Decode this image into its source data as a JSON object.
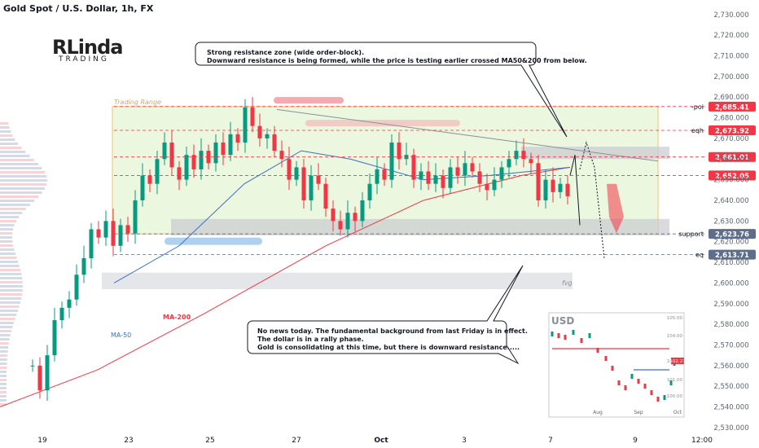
{
  "header": {
    "symbol": "Gold Spot / U.S. Dollar, 1h, FX"
  },
  "logo": {
    "big": "RLinda",
    "small": "TRADING"
  },
  "chart_data": {
    "type": "candlestick",
    "y_ticks": [
      2530,
      2540,
      2550,
      2560,
      2570,
      2580,
      2590,
      2600,
      2610,
      2620,
      2630,
      2640,
      2650,
      2660,
      2670,
      2680,
      2690,
      2700,
      2710,
      2720,
      2730
    ],
    "ylim": [
      2528,
      2737
    ],
    "x_ticks": [
      {
        "label": "19"
      },
      {
        "label": "23"
      },
      {
        "label": "25"
      },
      {
        "label": "27"
      },
      {
        "label": "Oct"
      },
      {
        "label": "3"
      },
      {
        "label": "7"
      },
      {
        "label": "9"
      },
      {
        "label": "12:00"
      }
    ],
    "price_path": [
      [
        0,
        2560
      ],
      [
        0.03,
        2548
      ],
      [
        0.06,
        2565
      ],
      [
        0.09,
        2582
      ],
      [
        0.12,
        2588
      ],
      [
        0.15,
        2592
      ],
      [
        0.18,
        2604
      ],
      [
        0.21,
        2612
      ],
      [
        0.24,
        2626
      ],
      [
        0.27,
        2622
      ],
      [
        0.3,
        2630
      ],
      [
        0.33,
        2618
      ],
      [
        0.36,
        2628
      ],
      [
        0.39,
        2624
      ],
      [
        0.42,
        2640
      ],
      [
        0.45,
        2652
      ],
      [
        0.48,
        2648
      ],
      [
        0.51,
        2660
      ],
      [
        0.54,
        2668
      ],
      [
        0.57,
        2656
      ],
      [
        0.6,
        2650
      ],
      [
        0.63,
        2662
      ],
      [
        0.66,
        2655
      ],
      [
        0.69,
        2664
      ],
      [
        0.72,
        2658
      ],
      [
        0.75,
        2668
      ],
      [
        0.78,
        2662
      ],
      [
        0.81,
        2672
      ],
      [
        0.84,
        2668
      ],
      [
        0.87,
        2685
      ],
      [
        0.9,
        2676
      ],
      [
        0.93,
        2670
      ],
      [
        0.96,
        2672
      ],
      [
        0.99,
        2664
      ],
      [
        1.02,
        2660
      ],
      [
        1.05,
        2650
      ],
      [
        1.08,
        2656
      ],
      [
        1.11,
        2640
      ],
      [
        1.14,
        2652
      ],
      [
        1.17,
        2648
      ],
      [
        1.2,
        2636
      ],
      [
        1.23,
        2630
      ],
      [
        1.26,
        2626
      ],
      [
        1.29,
        2634
      ],
      [
        1.32,
        2630
      ],
      [
        1.35,
        2640
      ],
      [
        1.38,
        2648
      ],
      [
        1.41,
        2655
      ],
      [
        1.44,
        2650
      ],
      [
        1.47,
        2668
      ],
      [
        1.5,
        2660
      ],
      [
        1.53,
        2662
      ],
      [
        1.56,
        2650
      ],
      [
        1.59,
        2654
      ],
      [
        1.62,
        2648
      ],
      [
        1.65,
        2652
      ],
      [
        1.68,
        2646
      ],
      [
        1.71,
        2656
      ],
      [
        1.74,
        2652
      ],
      [
        1.77,
        2658
      ],
      [
        1.8,
        2654
      ],
      [
        1.83,
        2648
      ],
      [
        1.86,
        2645
      ],
      [
        1.89,
        2650
      ],
      [
        1.92,
        2656
      ],
      [
        1.95,
        2660
      ],
      [
        1.98,
        2664
      ],
      [
        2.01,
        2660
      ],
      [
        2.04,
        2658
      ],
      [
        2.07,
        2640
      ],
      [
        2.1,
        2650
      ],
      [
        2.13,
        2644
      ],
      [
        2.16,
        2648
      ],
      [
        2.19,
        2642
      ]
    ],
    "levels": [
      {
        "label": "-poi",
        "price_label": "2,685.41",
        "value": 2685.41,
        "color": "#f23645"
      },
      {
        "label": "eqh",
        "price_label": "2,673.92",
        "value": 2673.92,
        "color": "#f23645"
      },
      {
        "label": "",
        "price_label": "2,661.01",
        "value": 2661.01,
        "color": "#f23645"
      },
      {
        "label": "",
        "price_label": "2,652.05",
        "value": 2652.05,
        "color": "#f23645"
      },
      {
        "label": "support",
        "price_label": "2,623.76",
        "value": 2623.76,
        "color": "#5d6d8a"
      },
      {
        "label": "eq",
        "price_label": "2,613.71",
        "value": 2613.71,
        "color": "#5d6d8a"
      }
    ],
    "annotations": {
      "trading_range": "Trading Range",
      "fvg": "fvg",
      "ma200": "MA-200",
      "ma50": "MA-50"
    }
  },
  "notes": {
    "top_1": "Strong resistance zone (wide order-block).",
    "top_2": "Downward resistance is being formed, while the price is testing earlier crossed MA50&200 from below.",
    "bottom_1": "No news today. The fundamental background from last Friday is in effect.",
    "bottom_2": "The dollar is in a rally phase.",
    "bottom_3": "Gold is consolidating at this time, but there is downward resistance....."
  },
  "inset": {
    "title": "USD",
    "y_ticks": [
      "105.00",
      "104.00",
      "103.00",
      "102.27",
      "101.00",
      "100.00"
    ],
    "x_ticks": [
      "Aug",
      "Sep",
      "Oct"
    ],
    "current": "102.27"
  },
  "colors": {
    "up": "#089981",
    "down": "#f23645",
    "range_fill": "#e6f5d6",
    "range_border": "#f0c36d",
    "bg": "#ffffff"
  }
}
